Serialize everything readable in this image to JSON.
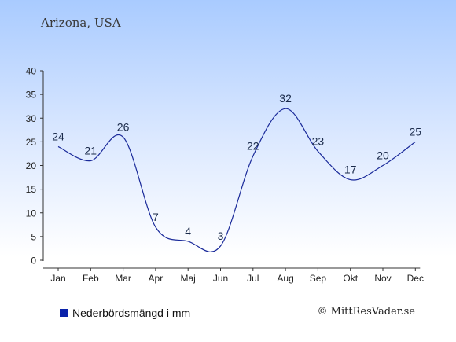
{
  "colors": {
    "line": "#1a2a9a",
    "axis": "#333333",
    "text": "#1a2a4a",
    "legend_swatch": "#0a22aa"
  },
  "chart_data": {
    "type": "line",
    "title": "Arizona, USA",
    "categories": [
      "Jan",
      "Feb",
      "Mar",
      "Apr",
      "Maj",
      "Jun",
      "Jul",
      "Aug",
      "Sep",
      "Okt",
      "Nov",
      "Dec"
    ],
    "series": [
      {
        "name": "Nederbördsmängd i mm",
        "values": [
          24,
          21,
          26,
          7,
          4,
          3,
          22,
          32,
          23,
          17,
          20,
          25
        ]
      }
    ],
    "ylim": [
      0,
      40
    ],
    "yticks": [
      0,
      5,
      10,
      15,
      20,
      25,
      30,
      35,
      40
    ],
    "grid": false,
    "legend_position": "bottom-left"
  },
  "credit": "© MittResVader.se"
}
